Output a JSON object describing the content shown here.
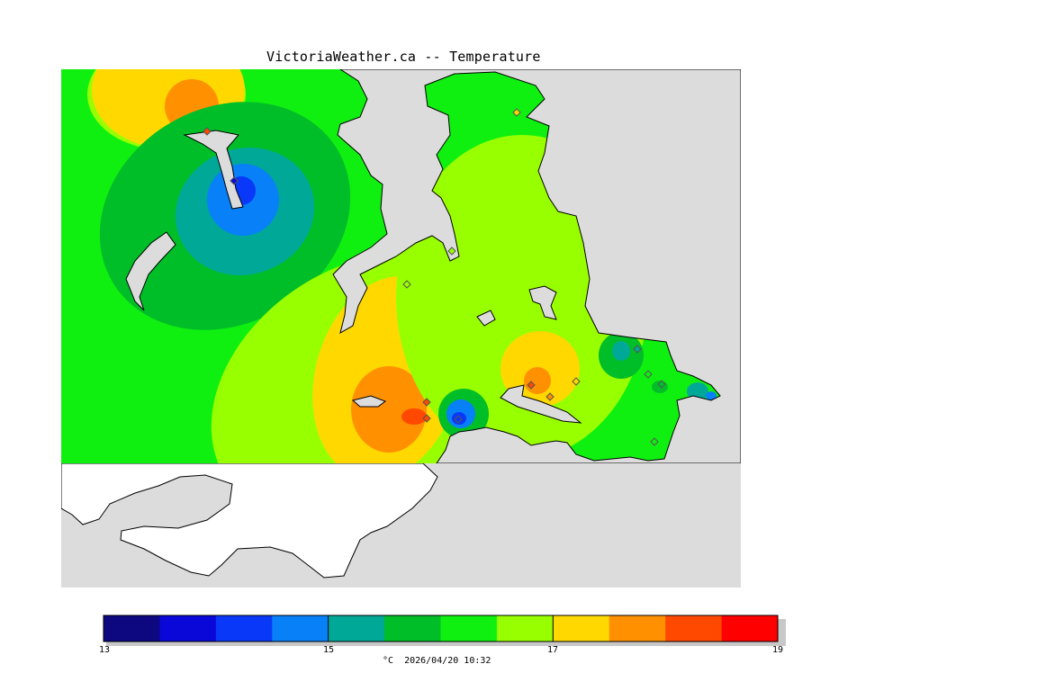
{
  "title": "VictoriaWeather.ca -- Temperature",
  "legend": {
    "unit_and_time": "°C  2026/04/20 10:32",
    "ticks": [
      "13",
      "15",
      "17",
      "19"
    ],
    "min": 13,
    "max": 19,
    "step": 0.5,
    "colors": [
      "#0d0880",
      "#0a08d8",
      "#0a38f8",
      "#0880f8",
      "#00a898",
      "#00be28",
      "#10f010",
      "#98ff00",
      "#ffd800",
      "#ff9000",
      "#ff4800",
      "#ff0000"
    ]
  },
  "map": {
    "land_shade_color": "#dcdcdc",
    "outside_land_color": "#ffffff"
  },
  "stations": [
    {
      "name": "",
      "value": "18.2"
    },
    {
      "name": "",
      "value": "13.9"
    },
    {
      "name": "",
      "value": "16.9"
    },
    {
      "name": "",
      "value": "16.6"
    },
    {
      "name": "",
      "value": "17.3"
    },
    {
      "name": "",
      "value": "18.4"
    },
    {
      "name": "",
      "value": "18.3"
    },
    {
      "name": "",
      "value": "14.1"
    },
    {
      "name": "",
      "value": "18.0"
    },
    {
      "name": "",
      "value": "17.9"
    },
    {
      "name": "",
      "value": "17.2"
    },
    {
      "name": "",
      "value": "15.0"
    },
    {
      "name": "",
      "value": "16.3"
    },
    {
      "name": "",
      "value": "15.8"
    },
    {
      "name": "",
      "value": "16.4"
    }
  ]
}
